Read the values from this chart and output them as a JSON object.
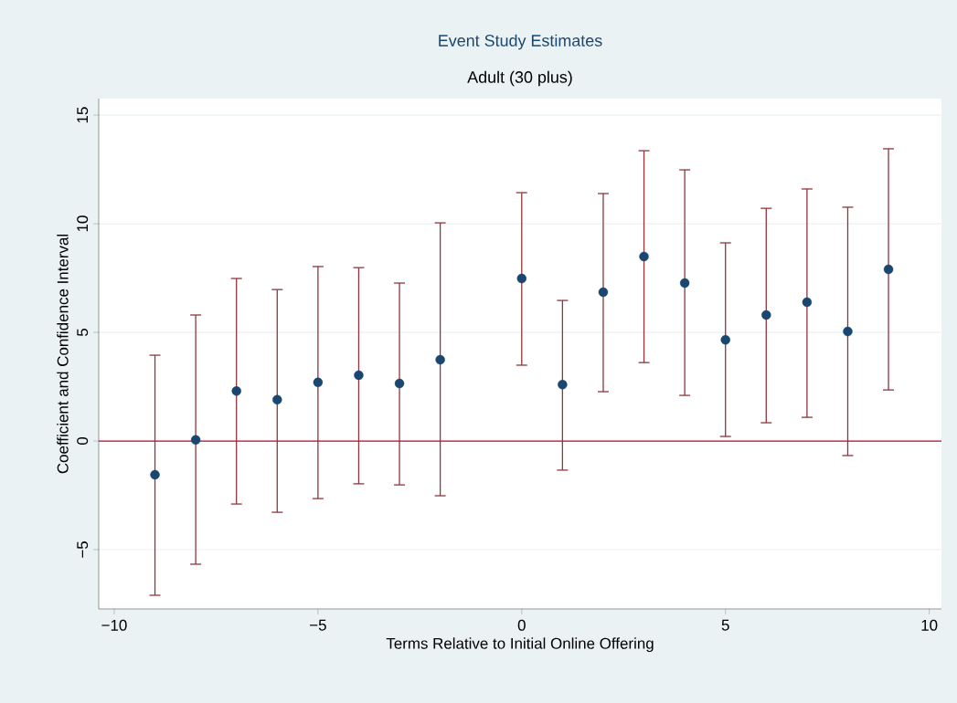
{
  "chart_data": {
    "type": "scatter",
    "title": "Event Study Estimates",
    "subtitle": "Adult (30 plus)",
    "xlabel": "Terms Relative to Initial Online Offering",
    "ylabel": "Coefficient and Confidence Interval",
    "x": [
      -9,
      -8,
      -7,
      -6,
      -5,
      -4,
      -3,
      -2,
      0,
      1,
      2,
      3,
      4,
      5,
      6,
      7,
      8,
      9
    ],
    "values": [
      -1.55,
      0.05,
      2.3,
      1.9,
      2.7,
      3.03,
      2.65,
      3.74,
      7.48,
      2.6,
      6.85,
      8.49,
      7.27,
      4.66,
      5.8,
      6.39,
      5.04,
      7.9
    ],
    "errors": [
      [
        -7.1,
        3.95
      ],
      [
        -5.67,
        5.8
      ],
      [
        -2.9,
        7.48
      ],
      [
        -3.28,
        6.97
      ],
      [
        -2.65,
        8.03
      ],
      [
        -1.97,
        7.98
      ],
      [
        -2.02,
        7.27
      ],
      [
        -2.52,
        10.04
      ],
      [
        3.49,
        11.43
      ],
      [
        -1.34,
        6.47
      ],
      [
        2.27,
        11.39
      ],
      [
        3.61,
        13.36
      ],
      [
        2.1,
        12.48
      ],
      [
        0.21,
        9.12
      ],
      [
        0.84,
        10.71
      ],
      [
        1.09,
        11.6
      ],
      [
        -0.67,
        10.76
      ],
      [
        2.35,
        13.45
      ]
    ],
    "color": "#1a476f",
    "marker": "circle",
    "xlim": [
      -10.38,
      10.3
    ],
    "ylim": [
      -7.73,
      15.76
    ],
    "xticks": [
      {
        "value": -10,
        "label": "−10"
      },
      {
        "value": -5,
        "label": "−5"
      },
      0,
      5,
      10
    ],
    "yticks": [
      {
        "value": -5,
        "label": "−5"
      },
      0,
      5,
      10,
      15
    ],
    "grid": "y",
    "ref_lines": [
      {
        "axis": "y",
        "value": 0,
        "color": "#c10534"
      }
    ]
  }
}
